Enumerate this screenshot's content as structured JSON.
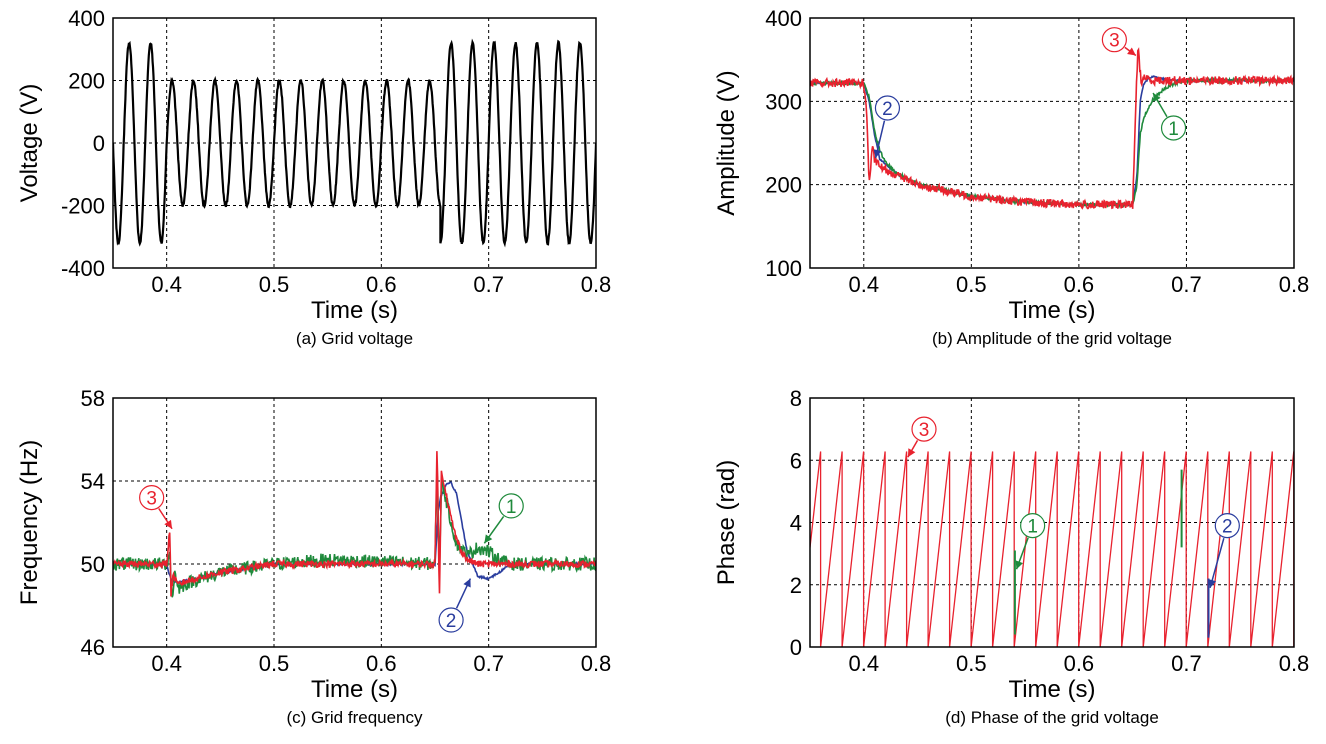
{
  "chart_data": [
    {
      "type": "line",
      "caption": "(a) Grid voltage",
      "xlabel": "Time (s)",
      "ylabel": "Voltage (V)",
      "xlim": [
        0.35,
        0.8
      ],
      "ylim": [
        -400,
        400
      ],
      "xticks": [
        0.4,
        0.5,
        0.6,
        0.7,
        0.8
      ],
      "yticks": [
        -400,
        -200,
        0,
        200,
        400
      ],
      "grid": true,
      "series": [
        {
          "kind": "sine",
          "color": "#000000",
          "frequency": 50,
          "segments": [
            {
              "x": [
                0.35,
                0.4
              ],
              "amplitude": 320
            },
            {
              "x": [
                0.4,
                0.655
              ],
              "amplitude": 200
            },
            {
              "x": [
                0.655,
                0.8
              ],
              "amplitude": 320
            }
          ]
        }
      ]
    },
    {
      "type": "line",
      "caption": "(b) Amplitude of the grid voltage",
      "xlabel": "Time (s)",
      "ylabel": "Amplitude (V)",
      "xlim": [
        0.35,
        0.8
      ],
      "ylim": [
        100,
        400
      ],
      "xticks": [
        0.4,
        0.5,
        0.6,
        0.7,
        0.8
      ],
      "yticks": [
        100,
        200,
        300,
        400
      ],
      "grid": true,
      "series": [
        {
          "color": "#2a3d9e",
          "noise": 1,
          "x": [
            0.35,
            0.4,
            0.405,
            0.41,
            0.415,
            0.42,
            0.43,
            0.45,
            0.5,
            0.55,
            0.6,
            0.65,
            0.654,
            0.657,
            0.66,
            0.665,
            0.67,
            0.68,
            0.7,
            0.8
          ],
          "y": [
            322,
            322,
            300,
            260,
            230,
            225,
            214,
            200,
            186,
            179,
            176,
            176,
            210,
            300,
            320,
            328,
            330,
            326,
            325,
            325
          ]
        },
        {
          "color": "#1f8a3c",
          "noise": 2,
          "x": [
            0.35,
            0.4,
            0.405,
            0.41,
            0.415,
            0.42,
            0.43,
            0.45,
            0.5,
            0.55,
            0.6,
            0.65,
            0.654,
            0.657,
            0.66,
            0.665,
            0.67,
            0.68,
            0.69,
            0.7,
            0.8
          ],
          "y": [
            322,
            322,
            305,
            265,
            240,
            228,
            214,
            201,
            186,
            179,
            176,
            176,
            200,
            260,
            280,
            292,
            305,
            315,
            322,
            325,
            325
          ]
        },
        {
          "color": "#e8222e",
          "noise": 5,
          "x": [
            0.35,
            0.4,
            0.403,
            0.405,
            0.408,
            0.41,
            0.415,
            0.42,
            0.43,
            0.45,
            0.5,
            0.55,
            0.6,
            0.65,
            0.653,
            0.655,
            0.658,
            0.66,
            0.665,
            0.67,
            0.8
          ],
          "y": [
            322,
            322,
            280,
            200,
            245,
            230,
            222,
            218,
            212,
            200,
            186,
            179,
            176,
            176,
            300,
            365,
            320,
            330,
            326,
            325,
            325
          ]
        }
      ],
      "annotations": [
        {
          "label": "1",
          "color": "#1f8a3c",
          "x": 0.688,
          "y": 268,
          "arrow_to": [
            0.669,
            310
          ]
        },
        {
          "label": "2",
          "color": "#2a3d9e",
          "x": 0.422,
          "y": 292,
          "arrow_to": [
            0.411,
            232
          ]
        },
        {
          "label": "3",
          "color": "#e8222e",
          "x": 0.633,
          "y": 374,
          "arrow_to": [
            0.653,
            355
          ]
        }
      ]
    },
    {
      "type": "line",
      "caption": "(c) Grid frequency",
      "xlabel": "Time (s)",
      "ylabel": "Frequency (Hz)",
      "xlim": [
        0.35,
        0.8
      ],
      "ylim": [
        46,
        58
      ],
      "xticks": [
        0.4,
        0.5,
        0.6,
        0.7,
        0.8
      ],
      "yticks": [
        46,
        50,
        54,
        58
      ],
      "grid": true,
      "series": [
        {
          "color": "#2a3d9e",
          "noise": 0.05,
          "x": [
            0.35,
            0.4,
            0.403,
            0.405,
            0.41,
            0.42,
            0.45,
            0.5,
            0.55,
            0.6,
            0.65,
            0.653,
            0.655,
            0.66,
            0.665,
            0.67,
            0.675,
            0.68,
            0.69,
            0.7,
            0.71,
            0.72,
            0.8
          ],
          "y": [
            50,
            50,
            49.4,
            49.2,
            49.1,
            49.2,
            49.6,
            50.0,
            50.0,
            50.0,
            50.0,
            52.5,
            53.2,
            53.8,
            53.9,
            53.4,
            52.0,
            50.6,
            49.4,
            49.3,
            49.6,
            50.0,
            50.0
          ]
        },
        {
          "color": "#1f8a3c",
          "noise": 0.32,
          "x": [
            0.35,
            0.4,
            0.403,
            0.405,
            0.408,
            0.41,
            0.42,
            0.45,
            0.5,
            0.55,
            0.6,
            0.65,
            0.652,
            0.654,
            0.656,
            0.66,
            0.665,
            0.67,
            0.68,
            0.69,
            0.7,
            0.71,
            0.72,
            0.8
          ],
          "y": [
            50.0,
            50.0,
            50.6,
            48.2,
            49.8,
            48.8,
            49.1,
            49.6,
            50.0,
            50.2,
            50.1,
            50.0,
            55.0,
            49.5,
            54.0,
            53.2,
            52.0,
            51.0,
            50.4,
            50.8,
            50.6,
            50.2,
            50.0,
            50.0
          ]
        },
        {
          "color": "#e8222e",
          "noise": 0.16,
          "x": [
            0.35,
            0.4,
            0.403,
            0.404,
            0.406,
            0.41,
            0.42,
            0.45,
            0.5,
            0.55,
            0.6,
            0.65,
            0.652,
            0.654,
            0.656,
            0.66,
            0.665,
            0.67,
            0.675,
            0.68,
            0.69,
            0.7,
            0.8
          ],
          "y": [
            50.0,
            50.0,
            51.7,
            48.5,
            49.5,
            49.0,
            49.2,
            49.6,
            50.0,
            50.0,
            50.0,
            50.0,
            56.0,
            48.0,
            54.5,
            53.5,
            52.2,
            51.2,
            50.6,
            50.2,
            50.0,
            50.0,
            50.0
          ]
        }
      ],
      "annotations": [
        {
          "label": "1",
          "color": "#1f8a3c",
          "x": 0.721,
          "y": 52.8,
          "arrow_to": [
            0.696,
            51.0
          ]
        },
        {
          "label": "2",
          "color": "#2a3d9e",
          "x": 0.665,
          "y": 47.3,
          "arrow_to": [
            0.683,
            49.3
          ]
        },
        {
          "label": "3",
          "color": "#e8222e",
          "x": 0.386,
          "y": 53.2,
          "arrow_to": [
            0.405,
            51.7
          ]
        }
      ]
    },
    {
      "type": "line",
      "caption": "(d) Phase of the grid voltage",
      "xlabel": "Time (s)",
      "ylabel": "Phase (rad)",
      "xlim": [
        0.35,
        0.8
      ],
      "ylim": [
        0,
        8
      ],
      "xticks": [
        0.4,
        0.5,
        0.6,
        0.7,
        0.8
      ],
      "yticks": [
        0,
        2,
        4,
        6,
        8
      ],
      "grid": true,
      "series": [
        {
          "kind": "sawtooth",
          "color": "#e8222e",
          "frequency": 50,
          "max": 6.28,
          "phase0": 3.2
        }
      ],
      "markers": [
        {
          "color": "#1f8a3c",
          "x": 0.5405,
          "y": [
            0.4,
            3.1
          ]
        },
        {
          "color": "#1f8a3c",
          "x": 0.6955,
          "y": [
            3.2,
            5.7
          ]
        },
        {
          "color": "#2a3d9e",
          "x": 0.7205,
          "y": [
            0.3,
            2.2
          ]
        }
      ],
      "annotations": [
        {
          "label": "1",
          "color": "#1f8a3c",
          "x": 0.557,
          "y": 3.9,
          "arrow_to": [
            0.542,
            2.5
          ]
        },
        {
          "label": "2",
          "color": "#2a3d9e",
          "x": 0.738,
          "y": 3.9,
          "arrow_to": [
            0.722,
            1.9
          ]
        },
        {
          "label": "3",
          "color": "#e8222e",
          "x": 0.456,
          "y": 7.0,
          "arrow_to": [
            0.441,
            6.1
          ]
        }
      ]
    }
  ]
}
